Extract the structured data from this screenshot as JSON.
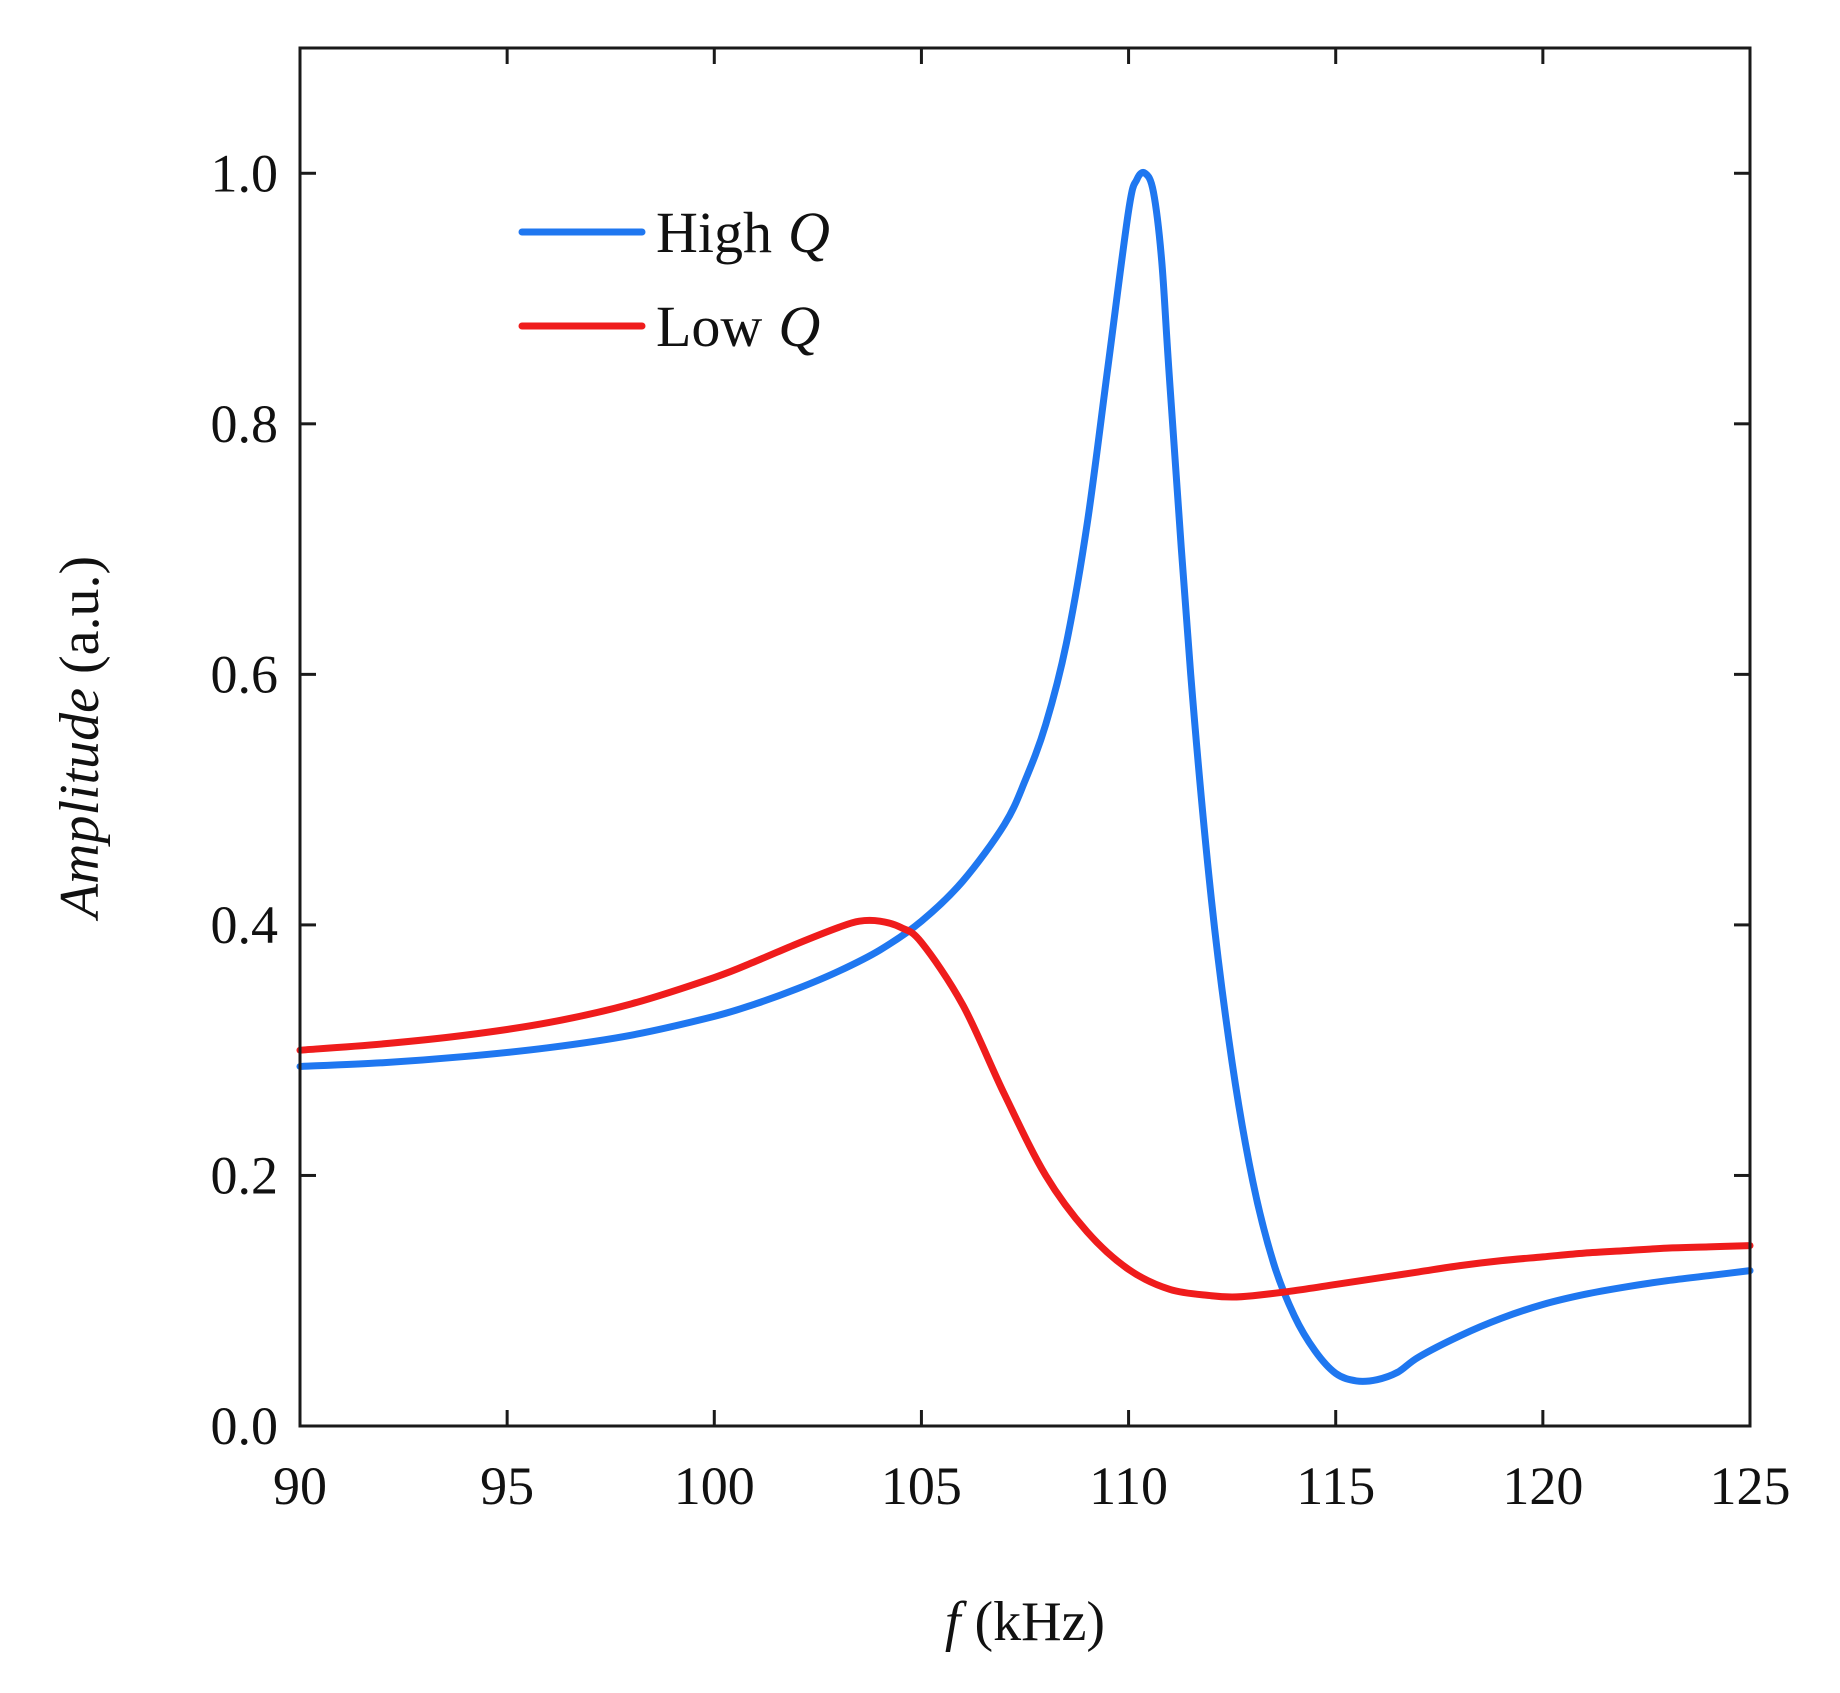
{
  "chart_data": {
    "type": "line",
    "title": "",
    "xlabel": {
      "symbol": "f",
      "unit": "(kHz)"
    },
    "ylabel": {
      "symbol": "Amplitude",
      "unit": "(a.u.)"
    },
    "xlim": [
      90,
      125
    ],
    "ylim": [
      0,
      1.1
    ],
    "x_ticks": [
      90,
      95,
      100,
      105,
      110,
      115,
      120,
      125
    ],
    "x_tick_labels": [
      "90",
      "95",
      "100",
      "105",
      "110",
      "115",
      "120",
      "125"
    ],
    "y_ticks": [
      0.0,
      0.2,
      0.4,
      0.6,
      0.8,
      1.0
    ],
    "y_tick_labels": [
      "0.0",
      "0.2",
      "0.4",
      "0.6",
      "0.8",
      "1.0"
    ],
    "grid": false,
    "legend_position": "top-left",
    "series": [
      {
        "name": "High Q",
        "label_text": "High",
        "label_symbol": "Q",
        "color": "#1f77f0",
        "x": [
          90,
          92,
          94,
          96,
          98,
          100,
          101,
          102,
          103,
          104,
          105,
          106,
          107,
          107.5,
          108,
          108.5,
          109,
          109.5,
          110,
          110.2,
          110.4,
          110.6,
          110.8,
          111,
          111.5,
          112,
          112.5,
          113,
          113.5,
          114,
          114.5,
          115,
          115.5,
          116,
          116.5,
          117,
          118,
          119,
          120,
          121,
          122,
          123,
          124,
          125
        ],
        "y": [
          0.287,
          0.29,
          0.295,
          0.302,
          0.312,
          0.327,
          0.337,
          0.349,
          0.363,
          0.38,
          0.403,
          0.435,
          0.48,
          0.515,
          0.56,
          0.625,
          0.72,
          0.845,
          0.97,
          0.995,
          1.0,
          0.985,
          0.93,
          0.83,
          0.6,
          0.42,
          0.29,
          0.195,
          0.13,
          0.088,
          0.06,
          0.042,
          0.036,
          0.037,
          0.043,
          0.055,
          0.072,
          0.086,
          0.097,
          0.105,
          0.111,
          0.116,
          0.12,
          0.124
        ]
      },
      {
        "name": "Low Q",
        "label_text": "Low",
        "label_symbol": "Q",
        "color": "#ef1c1c",
        "x": [
          90,
          92,
          94,
          96,
          98,
          100,
          101,
          102,
          103,
          103.5,
          104,
          104.5,
          105,
          106,
          107,
          108,
          109,
          110,
          111,
          112,
          112.5,
          113,
          114,
          115,
          116,
          117,
          118,
          119,
          120,
          121,
          122,
          123,
          124,
          125
        ],
        "y": [
          0.3,
          0.305,
          0.312,
          0.322,
          0.337,
          0.358,
          0.371,
          0.385,
          0.398,
          0.403,
          0.403,
          0.398,
          0.386,
          0.336,
          0.265,
          0.2,
          0.155,
          0.125,
          0.109,
          0.104,
          0.103,
          0.104,
          0.108,
          0.113,
          0.118,
          0.123,
          0.128,
          0.132,
          0.135,
          0.138,
          0.14,
          0.142,
          0.143,
          0.144
        ]
      }
    ]
  }
}
